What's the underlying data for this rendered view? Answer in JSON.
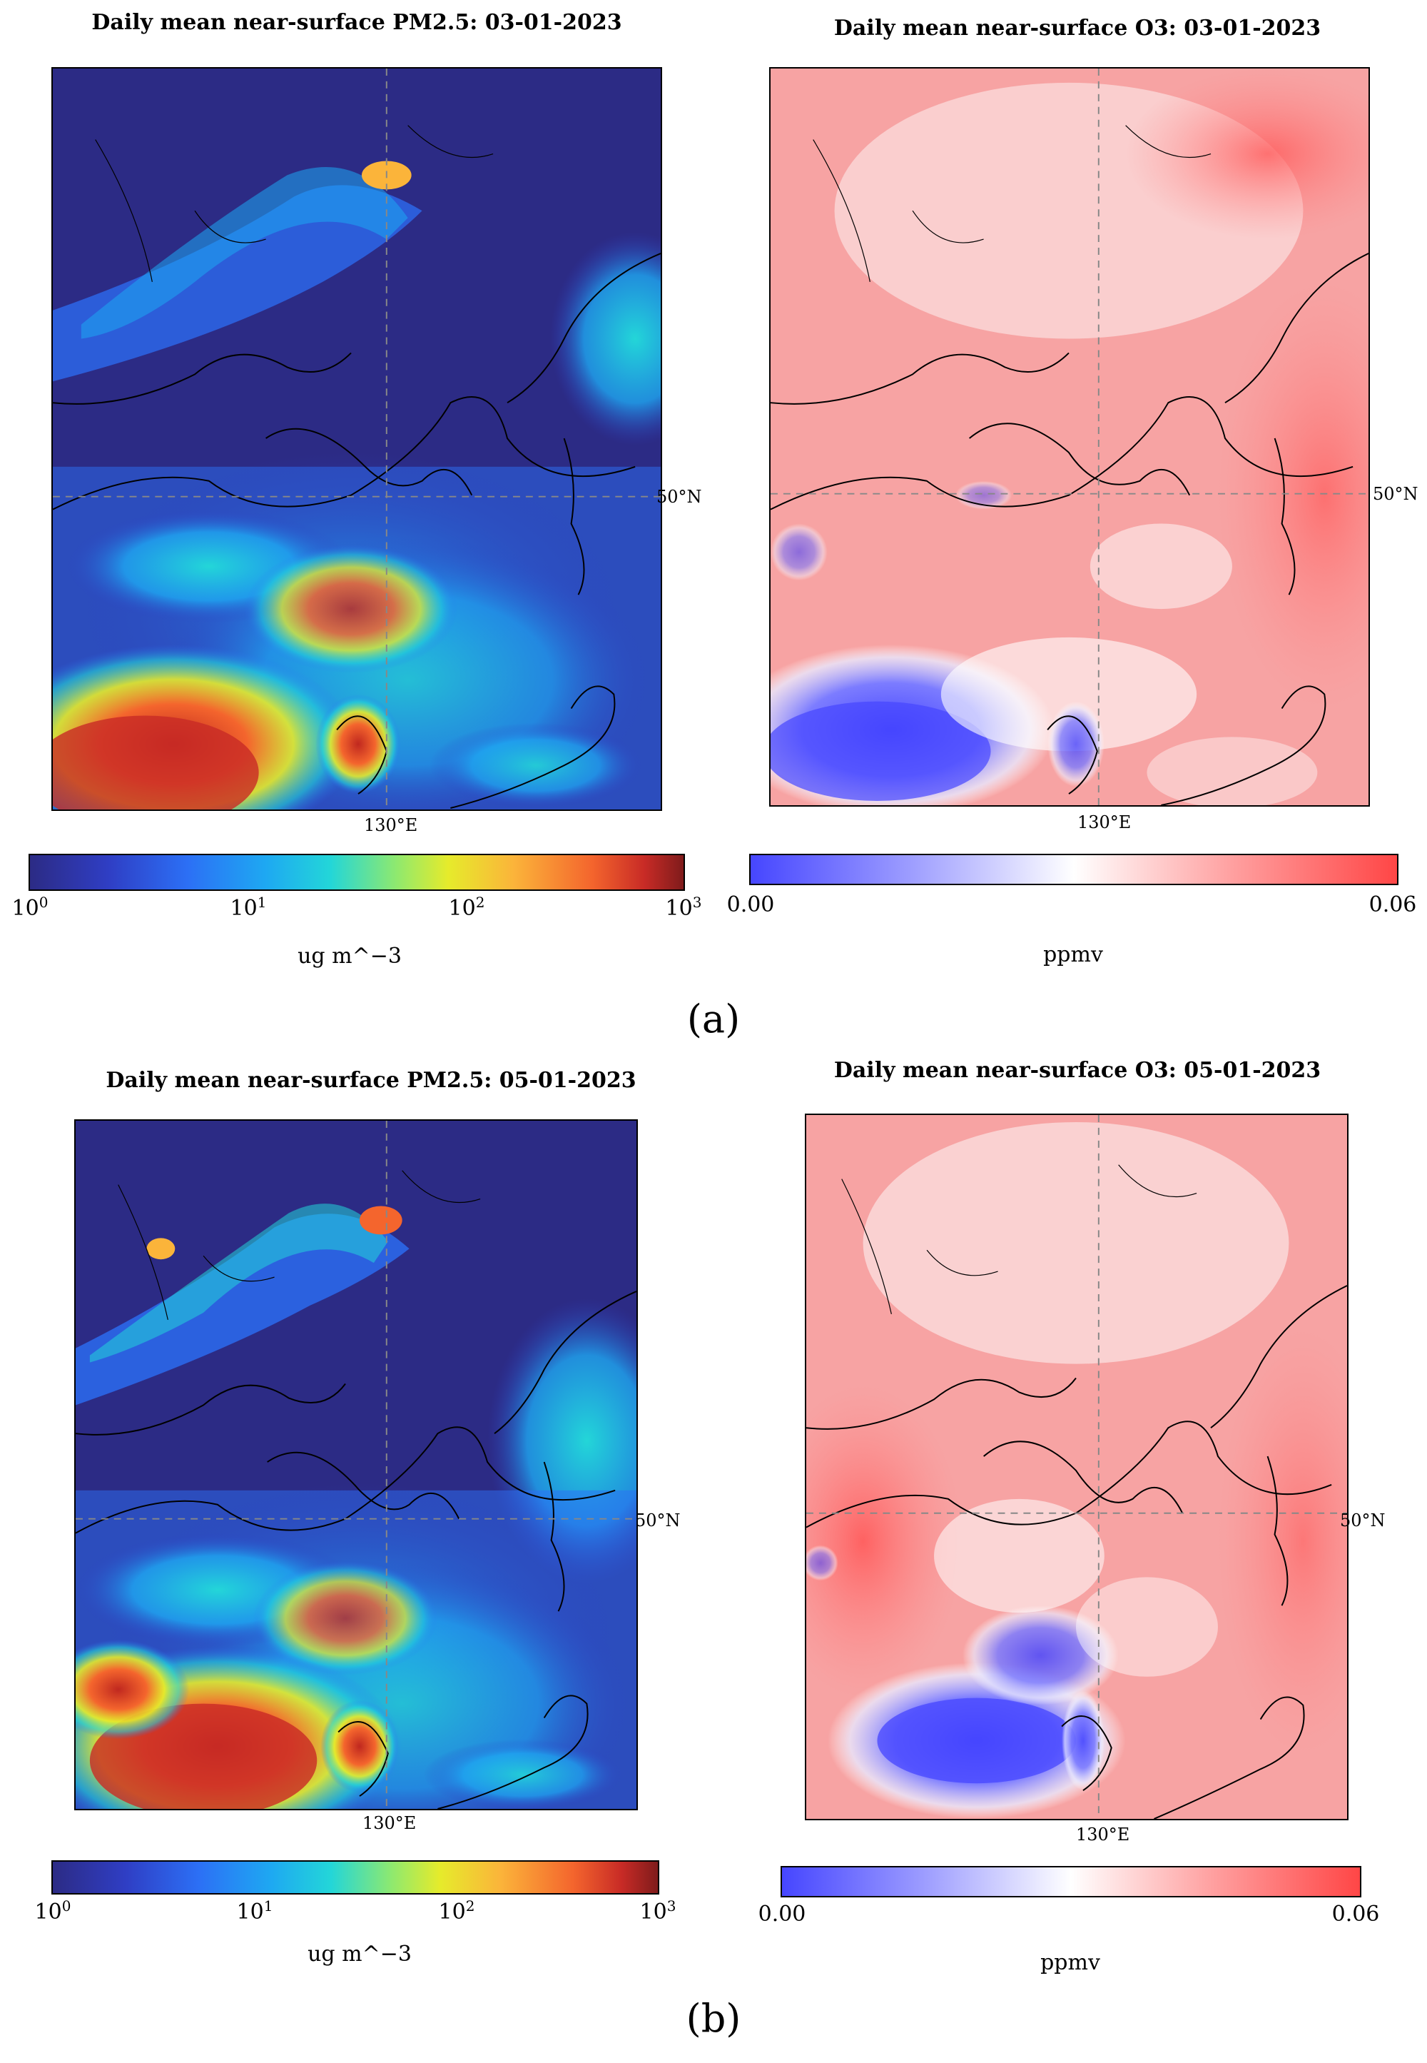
{
  "panels": [
    {
      "pm_title": "Daily mean near-surface PM2.5: 03-01-2023",
      "o3_title": "Daily mean near-surface O3: 03-01-2023",
      "label": "(a)"
    },
    {
      "pm_title": "Daily mean near-surface PM2.5: 05-01-2023",
      "o3_title": "Daily mean near-surface O3: 05-01-2023",
      "label": "(b)"
    }
  ],
  "map_labels": {
    "lon": "130°E",
    "lat": "50°N"
  },
  "pm_colorbar": {
    "colormap": "jet",
    "scale": "log",
    "ticks": [
      {
        "base": "10",
        "exp": "0"
      },
      {
        "base": "10",
        "exp": "1"
      },
      {
        "base": "10",
        "exp": "2"
      },
      {
        "base": "10",
        "exp": "3"
      }
    ],
    "unit": "ug m^−3"
  },
  "o3_colorbar": {
    "colormap": "bwr",
    "ticks": [
      "0.00",
      "0.06"
    ],
    "unit": "ppmv"
  },
  "colors": {
    "pm_background": "#2c2b85",
    "o3_background": "#f7a3a3",
    "border_lines": "#000000",
    "grid_lines": "#888888"
  }
}
